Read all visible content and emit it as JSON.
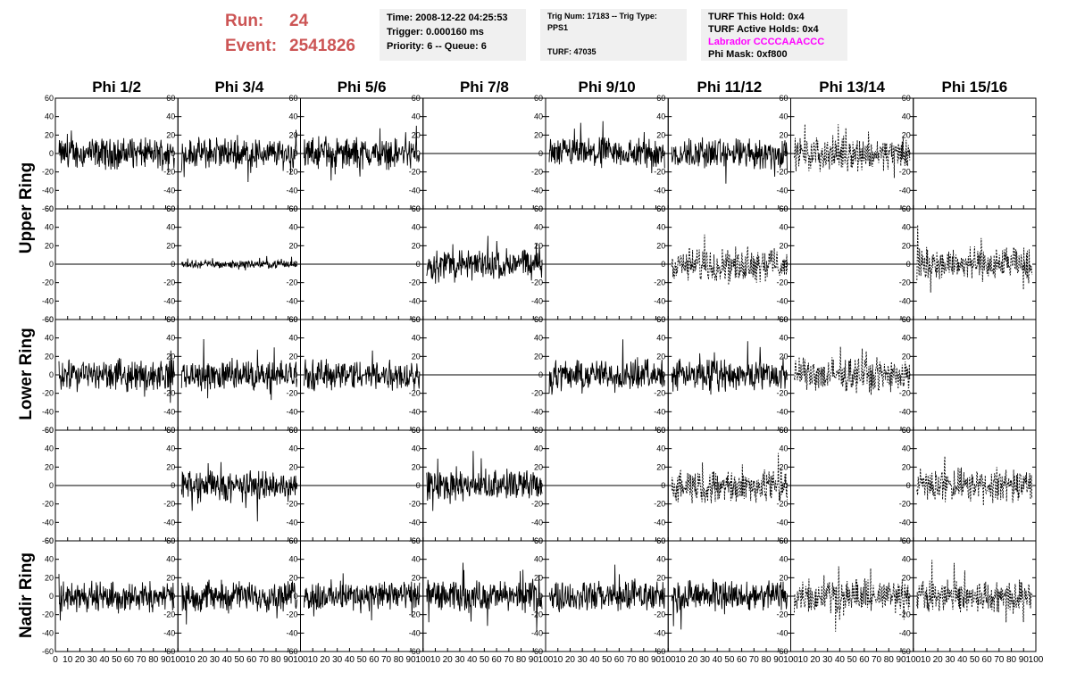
{
  "run": {
    "run_label": "Run:",
    "run_value": "24",
    "event_label": "Event:",
    "event_value": "2541826",
    "color": "#cc5555"
  },
  "info": {
    "time": "Time: 2008-12-22 04:25:53",
    "trigger": "Trigger: 0.000160 ms",
    "priority": "Priority: 6 -- Queue: 6",
    "trig_num": "Trig Num: 17183 -- Trig Type: PPS1",
    "turf": "TURF: 47035",
    "turf_hold": "TURF This Hold: 0x4",
    "turf_active": "TURF Active Holds: 0x4",
    "labrador": "Labrador CCCCAAACCC",
    "labrador_color": "#ff00ff",
    "phi_mask": "Phi Mask: 0xf800"
  },
  "phi_headers": [
    "Phi 1/2",
    "Phi 3/4",
    "Phi 5/6",
    "Phi 7/8",
    "Phi 9/10",
    "Phi 11/12",
    "Phi 13/14",
    "Phi 15/16"
  ],
  "ring_labels": [
    "Upper Ring",
    "Lower Ring",
    "Nadir Ring"
  ],
  "chart_data": {
    "type": "line",
    "x_range": [
      0,
      100
    ],
    "y_range": [
      -60,
      60
    ],
    "y_ticks": [
      "60",
      "40",
      "20",
      "0",
      "-20",
      "-40",
      "-60"
    ],
    "x_ticks": [
      "0",
      "10",
      "20",
      "30",
      "40",
      "50",
      "60",
      "70",
      "80",
      "90",
      "100"
    ],
    "rows": 5,
    "cols": 8,
    "panels": [
      [
        "noise",
        "noise",
        "noise",
        "flat",
        "noise",
        "noise",
        "dashed",
        "flat"
      ],
      [
        "flat",
        "small",
        "flat",
        "noise",
        "flat",
        "dashed",
        "flat",
        "dashed"
      ],
      [
        "noise",
        "noise",
        "noise",
        "flat",
        "noise",
        "noise",
        "dashed",
        "flat"
      ],
      [
        "flat",
        "noise",
        "flat",
        "noise",
        "flat",
        "dashed",
        "flat",
        "dashed"
      ],
      [
        "noise",
        "noise",
        "noise",
        "noise",
        "noise",
        "noise",
        "dashed",
        "dashed"
      ]
    ]
  }
}
